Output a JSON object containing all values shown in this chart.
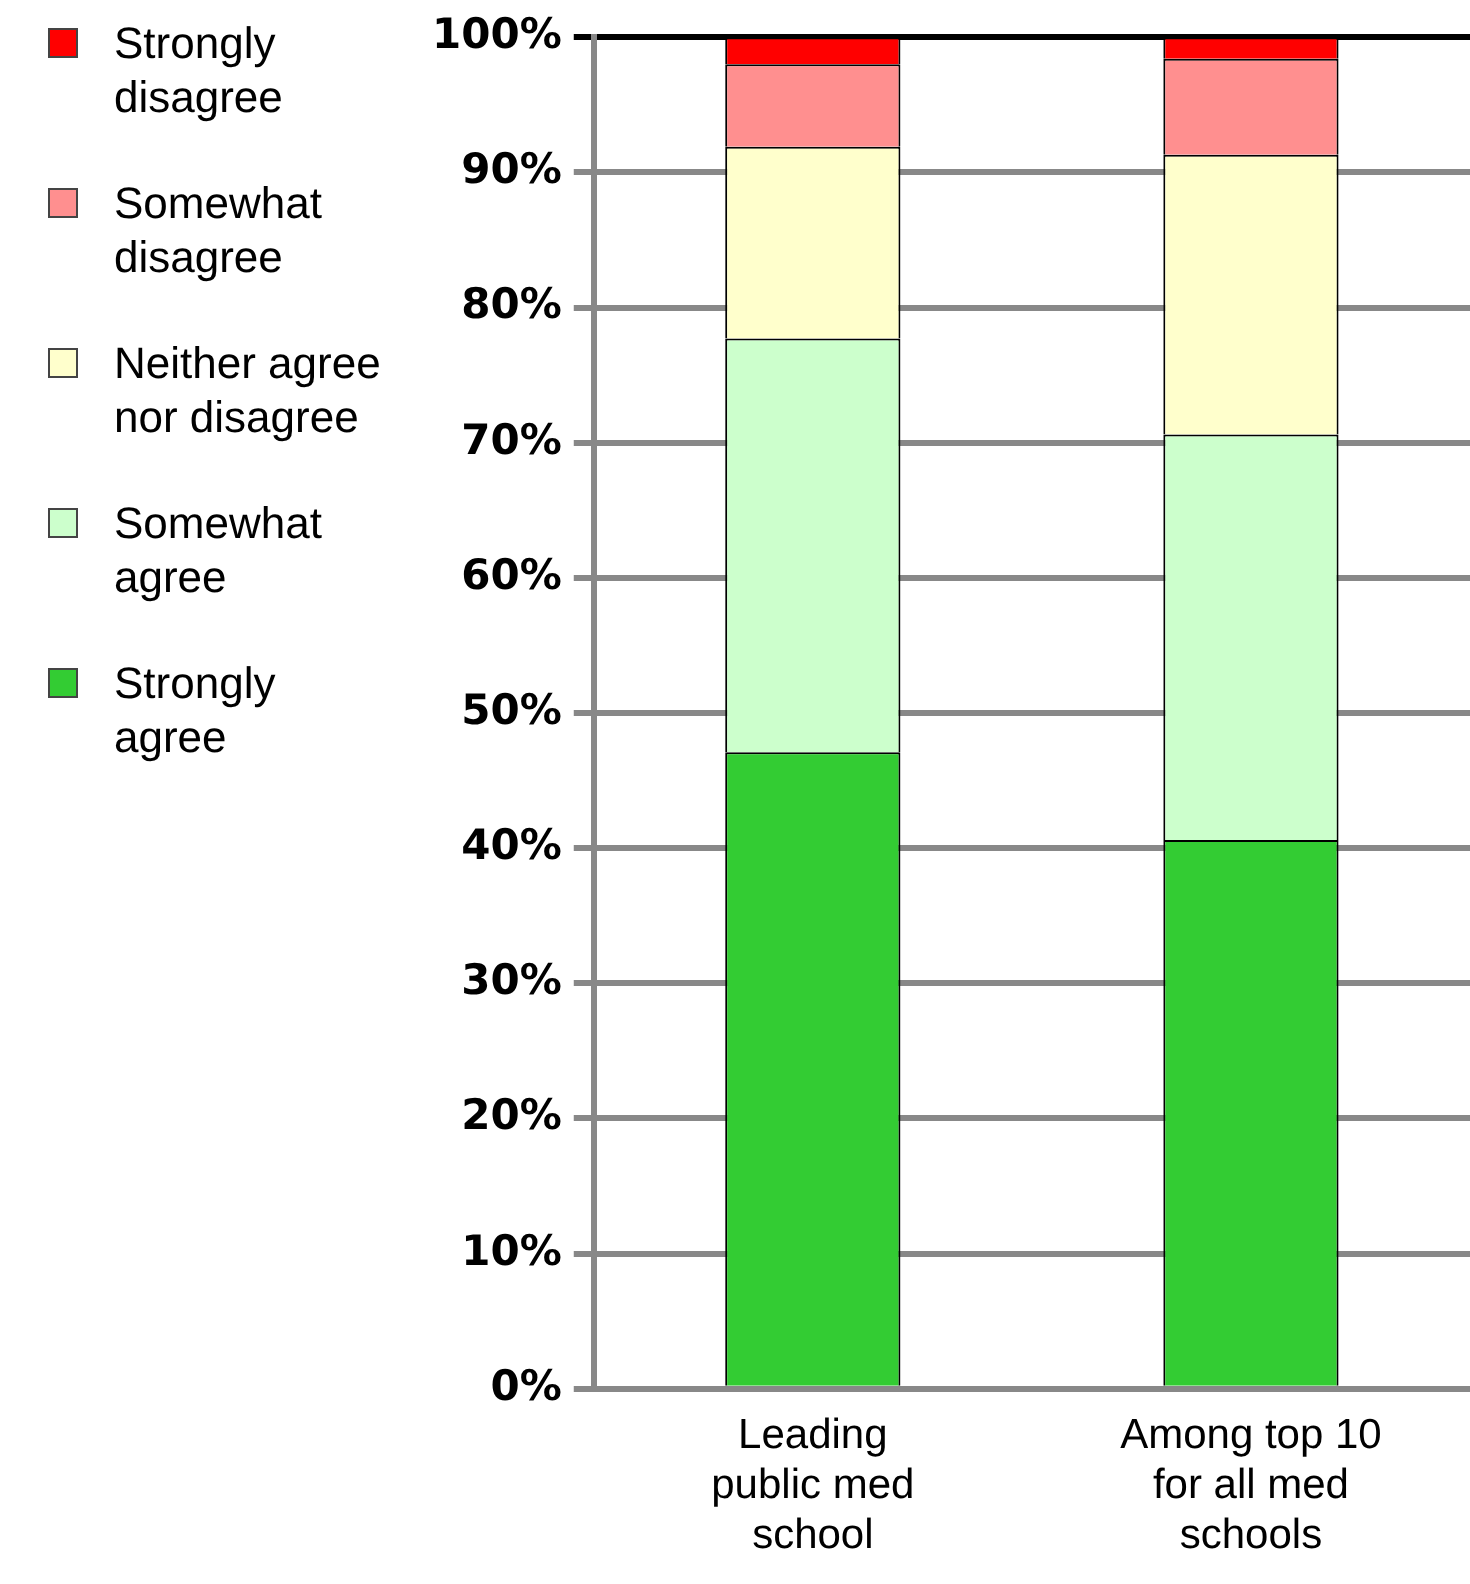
{
  "chart_data": {
    "type": "bar",
    "stacked": true,
    "categories": [
      "Leading public med school",
      "Among top 10 for all med schools"
    ],
    "series": [
      {
        "name": "Strongly agree",
        "color": "#33cc33",
        "values": [
          47.1,
          40.6
        ]
      },
      {
        "name": "Somewhat agree",
        "color": "#ccffcc",
        "values": [
          30.6,
          30.0
        ]
      },
      {
        "name": "Neither agree nor disagree",
        "color": "#ffffcc",
        "values": [
          14.2,
          20.7
        ]
      },
      {
        "name": "Somewhat disagree",
        "color": "#ff8f8f",
        "values": [
          6.1,
          7.1
        ]
      },
      {
        "name": "Strongly disagree",
        "color": "#ff0000",
        "values": [
          2.0,
          1.6
        ]
      }
    ],
    "ylim": [
      0,
      100
    ],
    "yticks": [
      {
        "value": 0,
        "label": "0%"
      },
      {
        "value": 10,
        "label": "10%"
      },
      {
        "value": 20,
        "label": "20%"
      },
      {
        "value": 30,
        "label": "30%"
      },
      {
        "value": 40,
        "label": "40%"
      },
      {
        "value": 50,
        "label": "50%"
      },
      {
        "value": 60,
        "label": "60%"
      },
      {
        "value": 70,
        "label": "70%"
      },
      {
        "value": 80,
        "label": "80%"
      },
      {
        "value": 90,
        "label": "90%"
      },
      {
        "value": 100,
        "label": "100%"
      }
    ],
    "grid": "y",
    "legend": "left"
  }
}
